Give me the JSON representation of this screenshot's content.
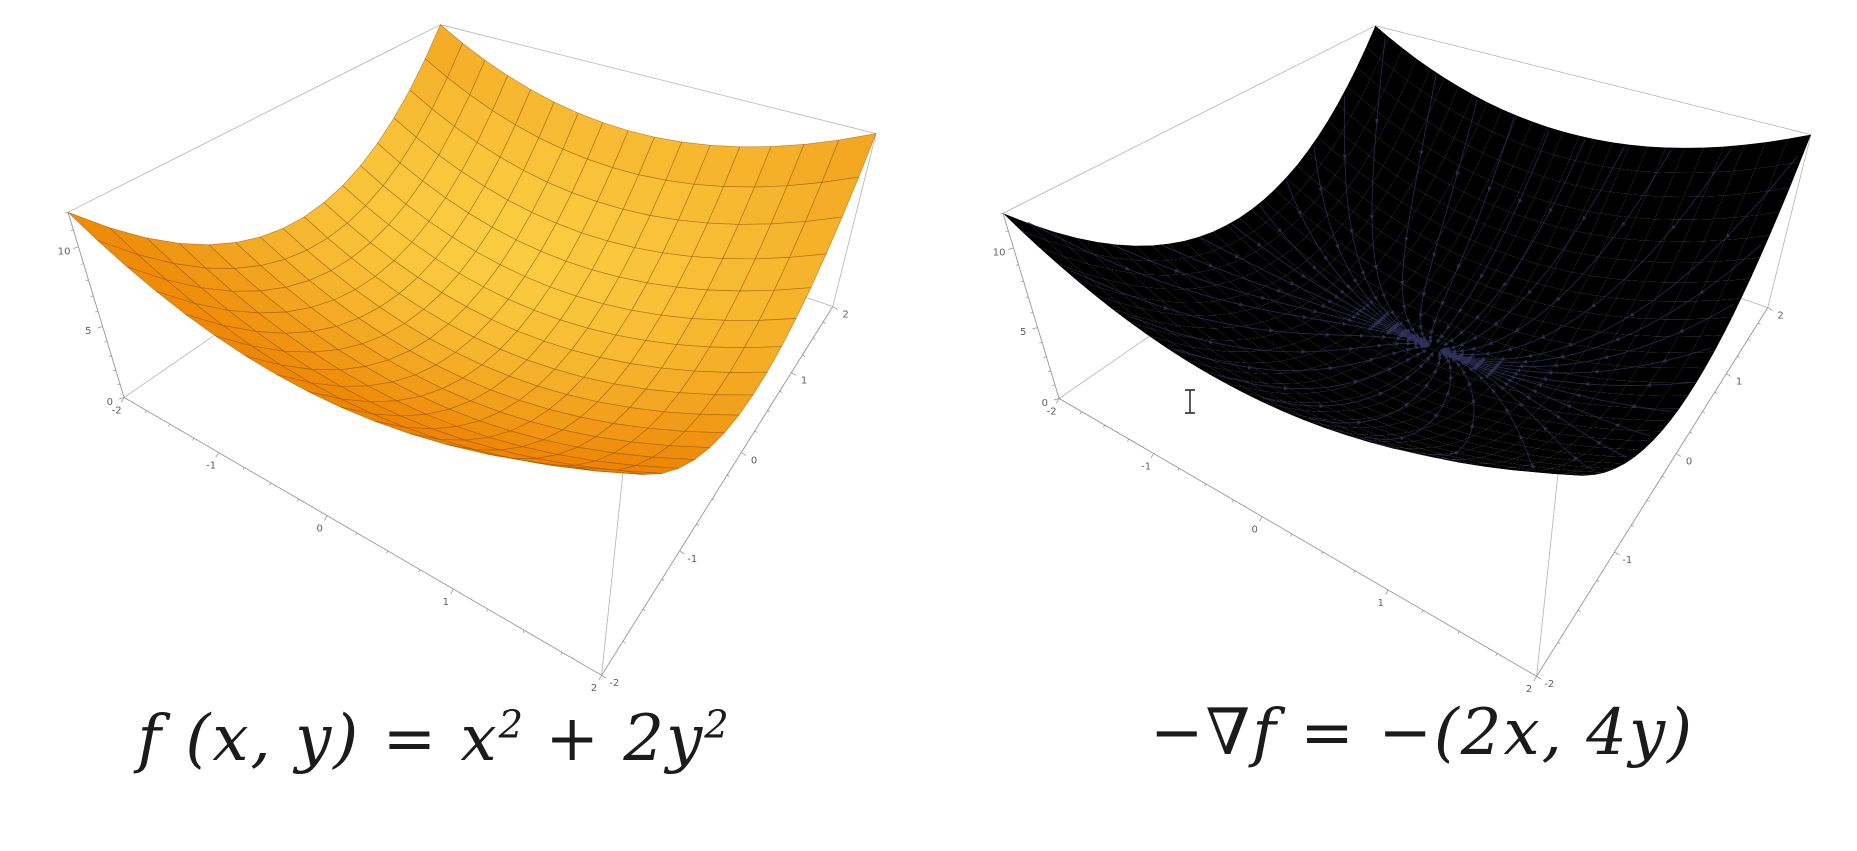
{
  "background": "#ffffff",
  "chart_data": [
    {
      "type": "surface3d",
      "title": "f(x, y) = x² + 2y²",
      "function": "z = x^2 + 2y^2",
      "x_range": [
        -2,
        2
      ],
      "y_range": [
        -2,
        2
      ],
      "z_range": [
        0,
        12
      ],
      "x_tick_values": [
        -2,
        -1,
        0,
        1,
        2
      ],
      "x_tick_labels": [
        "-2",
        "-1",
        "0",
        "1",
        "2"
      ],
      "y_tick_values": [
        -2,
        -1,
        0,
        1,
        2
      ],
      "y_tick_labels": [
        "-2",
        "-1",
        "0",
        "1",
        "2"
      ],
      "z_tick_values": [
        0,
        5,
        10
      ],
      "z_tick_labels": [
        "0",
        "5",
        "10"
      ],
      "minor_tick_step": 0.25,
      "z_minor_tick_step": 1,
      "mesh_divisions": 16,
      "legend": "none",
      "grid": "mesh-on-surface",
      "colors": {
        "surface_low": "#EC8100",
        "surface_high": "#FFE154",
        "underside": "#C96A00",
        "mesh_line": "rgba(139,69,0,0.55)",
        "box_edge": "#B3B3B3",
        "axis_line": "#9A9A9A",
        "tick_text": "#606060"
      },
      "caption_parts": [
        "f (x, y) = x",
        "2",
        " + 2y",
        "2"
      ]
    },
    {
      "type": "surface3d_vector_field",
      "title": "−∇f = −(2x, 4y)",
      "function": "z = x^2 + 2y^2",
      "vector_field": "-∇f = (-2x, -4y)",
      "x_range": [
        -2,
        2
      ],
      "y_range": [
        -2,
        2
      ],
      "z_range": [
        0,
        12
      ],
      "x_tick_values": [
        -2,
        -1,
        0,
        1,
        2
      ],
      "x_tick_labels": [
        "-2",
        "-1",
        "0",
        "1",
        "2"
      ],
      "y_tick_values": [
        -2,
        -1,
        0,
        1,
        2
      ],
      "y_tick_labels": [
        "-2",
        "-1",
        "0",
        "1",
        "2"
      ],
      "z_tick_values": [
        0,
        5,
        10
      ],
      "z_tick_labels": [
        "0",
        "5",
        "10"
      ],
      "minor_tick_step": 0.25,
      "z_minor_tick_step": 1,
      "mesh_divisions": 26,
      "legend": "none",
      "grid": "off",
      "streamlines": {
        "count": 36,
        "color": "#31315A",
        "direction": "descent-toward-minimum"
      },
      "colors": {
        "surface_low": "#F7F0CA",
        "surface_high": "#CB8F9E",
        "warm": "#ED9E58",
        "highlight": "#FBF6DC",
        "box_edge": "#B3B3B3",
        "axis_line": "#9A9A9A",
        "tick_text": "#606060"
      },
      "caption": "−∇f = −(2x, 4y)"
    }
  ],
  "cursor": {
    "type": "text-ibeam"
  }
}
